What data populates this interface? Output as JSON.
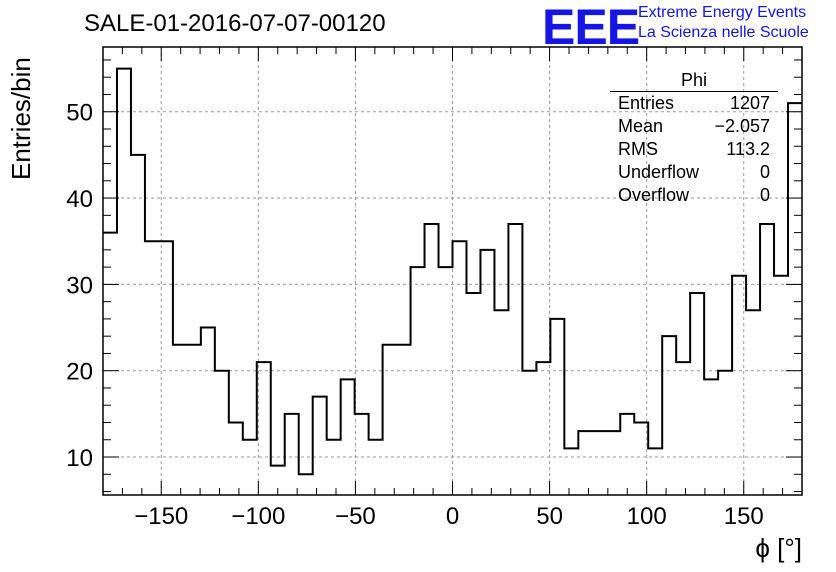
{
  "title": "SALE-01-2016-07-07-00120",
  "logo": {
    "mark": "EEE",
    "line1": "Extreme Energy Events",
    "line2": "La Scienza nelle Scuole",
    "color": "#1515e6"
  },
  "stats_box": {
    "name": "Phi",
    "rows": [
      {
        "label": "Entries",
        "value": "1207"
      },
      {
        "label": "Mean",
        "value": "−2.057"
      },
      {
        "label": "RMS",
        "value": "113.2"
      },
      {
        "label": "Underflow",
        "value": "0"
      },
      {
        "label": "Overflow",
        "value": "0"
      }
    ]
  },
  "chart_data": {
    "type": "bar",
    "subtype": "step-histogram",
    "xlabel": "ϕ [°]",
    "ylabel": "Entries/bin",
    "xlim": [
      -180,
      180
    ],
    "ylim": [
      5.6,
      57.5
    ],
    "xticks": [
      -150,
      -100,
      -50,
      0,
      50,
      100,
      150
    ],
    "yticks": [
      10,
      20,
      30,
      40,
      50
    ],
    "grid": true,
    "bin_width": 7.2,
    "values": [
      36,
      55,
      45,
      35,
      35,
      23,
      23,
      25,
      20,
      14,
      12,
      21,
      9,
      15,
      8,
      17,
      12,
      19,
      15,
      12,
      23,
      23,
      32,
      37,
      32,
      35,
      29,
      34,
      27,
      37,
      20,
      21,
      26,
      11,
      13,
      13,
      13,
      15,
      14,
      11,
      24,
      21,
      29,
      19,
      20,
      31,
      27,
      37,
      31,
      51
    ]
  }
}
